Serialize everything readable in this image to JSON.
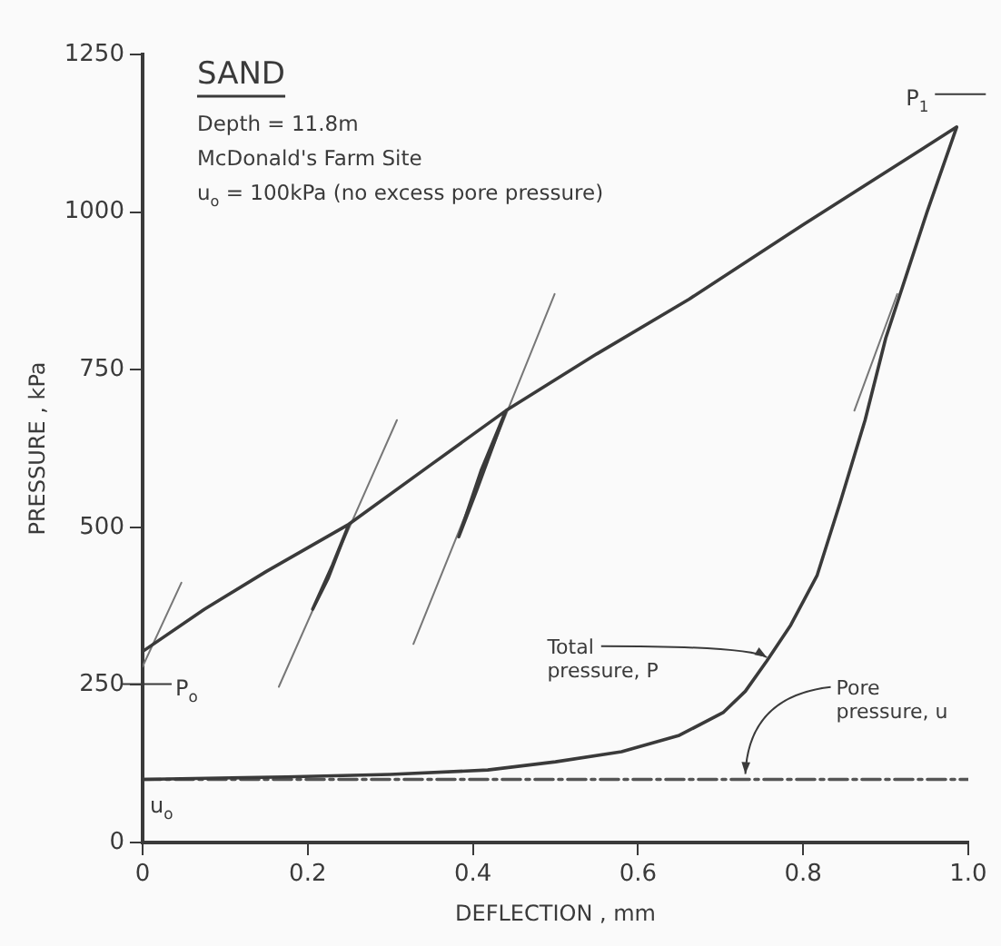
{
  "chart_data": {
    "type": "line",
    "title": "SAND",
    "xlabel": "DEFLECTION , mm",
    "ylabel": "PRESSURE , kPa",
    "xlim": [
      0,
      1
    ],
    "ylim": [
      0,
      1250
    ],
    "xticks": [
      0,
      0.2,
      0.4,
      0.6,
      0.8,
      {
        "value": 1,
        "label": "1.0"
      }
    ],
    "yticks": [
      0,
      250,
      500,
      750,
      1000,
      1250
    ],
    "grid": false,
    "legend": false,
    "marker": "none",
    "series": [
      {
        "name": "Total pressure, P",
        "color": "#3a3a3a",
        "line_style": "solid",
        "x": [
          0,
          0.075,
          0.15,
          0.25,
          0.23,
          0.206,
          0.225,
          0.25,
          0.35,
          0.44,
          0.41,
          0.383,
          0.405,
          0.44,
          0.55,
          0.662,
          0.8,
          0.986,
          0.95,
          0.93,
          0.9,
          0.875,
          0.845,
          0.817,
          0.785,
          0.756,
          0.73,
          0.703,
          0.65,
          0.58,
          0.5,
          0.418,
          0.3,
          0.174,
          0
        ],
        "values": [
          303,
          370,
          430,
          505,
          440,
          370,
          420,
          505,
          600,
          685,
          590,
          485,
          560,
          685,
          775,
          862,
          980,
          1135,
          1000,
          920,
          800,
          670,
          540,
          424,
          345,
          288,
          240,
          206,
          170,
          144,
          128,
          115,
          108,
          104,
          100
        ]
      },
      {
        "name": "Pore pressure, u",
        "color": "#555555",
        "line_style": "dashed",
        "x": [
          0,
          1
        ],
        "values": [
          100,
          100
        ]
      },
      {
        "color": "#777777",
        "line_style": "solid",
        "x": [
          0,
          0.047
        ],
        "values": [
          279,
          412
        ]
      },
      {
        "color": "#777777",
        "line_style": "solid",
        "x": [
          0.165,
          0.308
        ],
        "values": [
          247,
          670
        ]
      },
      {
        "color": "#777777",
        "line_style": "solid",
        "x": [
          0.328,
          0.499
        ],
        "values": [
          315,
          870
        ]
      },
      {
        "color": "#777777",
        "line_style": "solid",
        "x": [
          0.862,
          0.914
        ],
        "values": [
          685,
          870
        ]
      }
    ],
    "annotations": [
      "Depth = 11.8m",
      "McDonald's Farm Site",
      "u$_{o}$ = 100kPa (no excess pore pressure)",
      "P$_{o}$",
      "P$_{1}$",
      "u$_{o}$"
    ]
  }
}
